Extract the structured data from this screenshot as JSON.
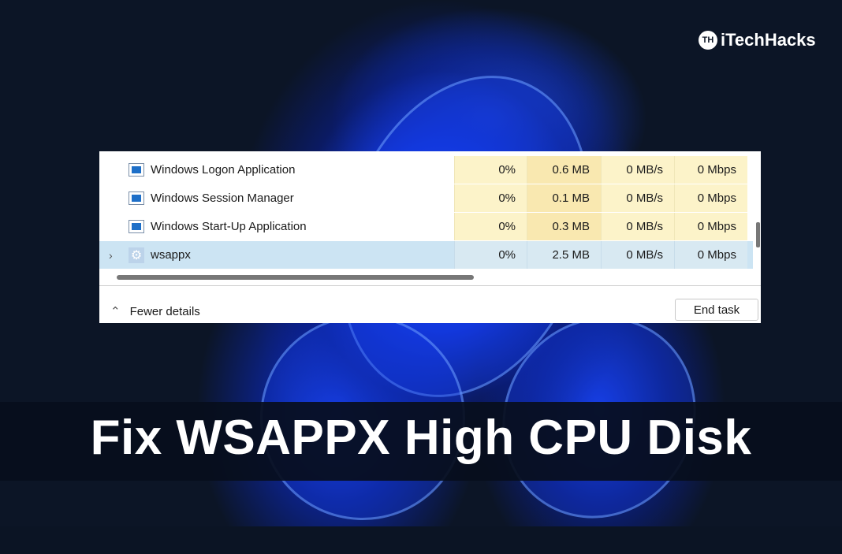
{
  "brand": {
    "name": "iTechHacks",
    "mark": "TH"
  },
  "task_manager": {
    "rows": [
      {
        "name": "Windows Logon Application",
        "icon": "window-icon",
        "cpu": "0%",
        "memory": "0.6 MB",
        "disk": "0 MB/s",
        "network": "0 Mbps"
      },
      {
        "name": "Windows Session Manager",
        "icon": "window-icon",
        "cpu": "0%",
        "memory": "0.1 MB",
        "disk": "0 MB/s",
        "network": "0 Mbps"
      },
      {
        "name": "Windows Start-Up Application",
        "icon": "window-icon",
        "cpu": "0%",
        "memory": "0.3 MB",
        "disk": "0 MB/s",
        "network": "0 Mbps"
      },
      {
        "name": "wsappx",
        "icon": "gear-icon",
        "cpu": "0%",
        "memory": "2.5 MB",
        "disk": "0 MB/s",
        "network": "0 Mbps",
        "selected": true
      }
    ],
    "fewer_details": "Fewer details",
    "end_task": "End task"
  },
  "headline": "Fix WSAPPX High CPU Disk"
}
